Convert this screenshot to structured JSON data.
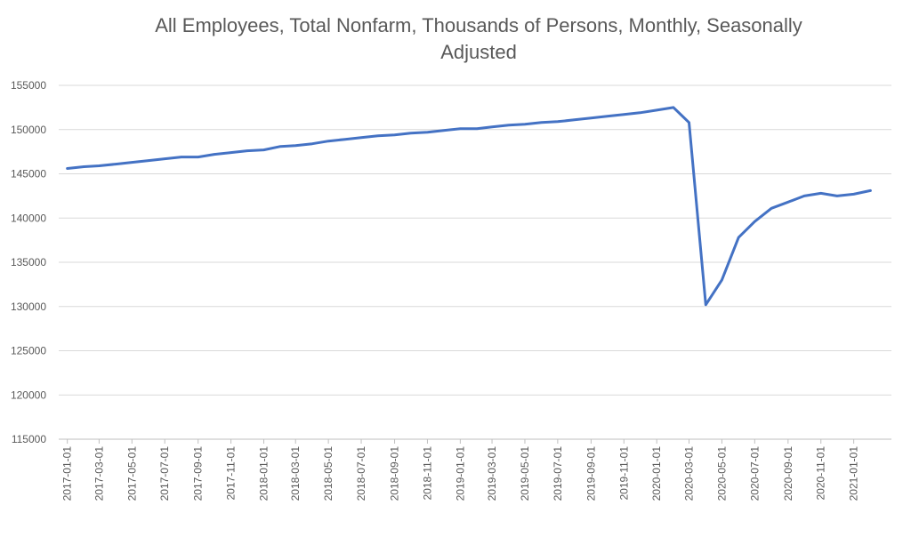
{
  "chart_data": {
    "type": "line",
    "title": "All Employees, Total Nonfarm, Thousands of Persons, Monthly, Seasonally Adjusted",
    "xlabel": "",
    "ylabel": "",
    "ylim": [
      115000,
      155000
    ],
    "yticks": [
      115000,
      120000,
      125000,
      130000,
      135000,
      140000,
      145000,
      150000,
      155000
    ],
    "xtick_labels": [
      "2017-01-01",
      "2017-03-01",
      "2017-05-01",
      "2017-07-01",
      "2017-09-01",
      "2017-11-01",
      "2018-01-01",
      "2018-03-01",
      "2018-05-01",
      "2018-07-01",
      "2018-09-01",
      "2018-11-01",
      "2019-01-01",
      "2019-03-01",
      "2019-05-01",
      "2019-07-01",
      "2019-09-01",
      "2019-11-01",
      "2020-01-01",
      "2020-03-01",
      "2020-05-01",
      "2020-07-01",
      "2020-09-01",
      "2020-11-01",
      "2021-01-01"
    ],
    "grid": true,
    "line_color": "#4472C4",
    "series": [
      {
        "x": [
          "2017-01-01",
          "2017-02-01",
          "2017-03-01",
          "2017-04-01",
          "2017-05-01",
          "2017-06-01",
          "2017-07-01",
          "2017-08-01",
          "2017-09-01",
          "2017-10-01",
          "2017-11-01",
          "2017-12-01",
          "2018-01-01",
          "2018-02-01",
          "2018-03-01",
          "2018-04-01",
          "2018-05-01",
          "2018-06-01",
          "2018-07-01",
          "2018-08-01",
          "2018-09-01",
          "2018-10-01",
          "2018-11-01",
          "2018-12-01",
          "2019-01-01",
          "2019-02-01",
          "2019-03-01",
          "2019-04-01",
          "2019-05-01",
          "2019-06-01",
          "2019-07-01",
          "2019-08-01",
          "2019-09-01",
          "2019-10-01",
          "2019-11-01",
          "2019-12-01",
          "2020-01-01",
          "2020-02-01",
          "2020-03-01",
          "2020-04-01",
          "2020-05-01",
          "2020-06-01",
          "2020-07-01",
          "2020-08-01",
          "2020-09-01",
          "2020-10-01",
          "2020-11-01",
          "2020-12-01",
          "2021-01-01",
          "2021-02-01"
        ],
        "values": [
          145600,
          145800,
          145900,
          146100,
          146300,
          146500,
          146700,
          146900,
          146900,
          147200,
          147400,
          147600,
          147700,
          148100,
          148200,
          148400,
          148700,
          148900,
          149100,
          149300,
          149400,
          149600,
          149700,
          149900,
          150100,
          150100,
          150300,
          150500,
          150600,
          150800,
          150900,
          151100,
          151300,
          151500,
          151700,
          151900,
          152200,
          152500,
          150800,
          130200,
          133000,
          137800,
          139600,
          141100,
          141800,
          142500,
          142800,
          142500,
          142700,
          143100
        ]
      }
    ]
  }
}
